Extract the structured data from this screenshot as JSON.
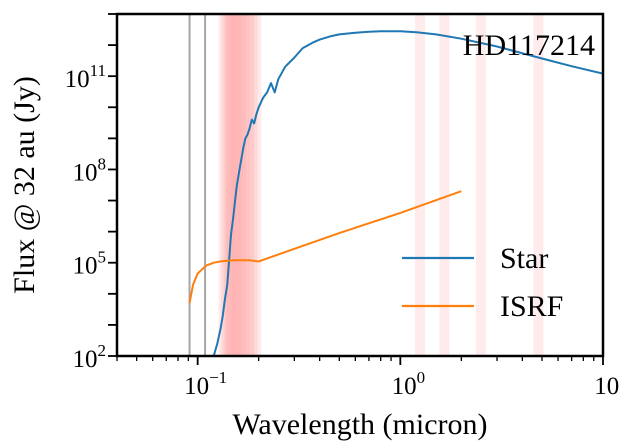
{
  "chart_data": {
    "type": "line",
    "title": "HD117214",
    "xlabel": "Wavelength (micron)",
    "ylabel": "Flux @ 32 au (Jy)",
    "xscale": "log",
    "yscale": "log",
    "xlim": [
      0.04,
      10
    ],
    "ylim": [
      100,
      10000000000000.0
    ],
    "x_ticks": [
      {
        "value": 0.1,
        "base": "10",
        "exp": "−1"
      },
      {
        "value": 1,
        "base": "10",
        "exp": "0"
      },
      {
        "value": 10,
        "base": "10",
        "exp": "1"
      }
    ],
    "y_ticks": [
      {
        "value": 100,
        "base": "10",
        "exp": "2"
      },
      {
        "value": 100000,
        "base": "10",
        "exp": "5"
      },
      {
        "value": 100000000,
        "base": "10",
        "exp": "8"
      },
      {
        "value": 100000000000,
        "base": "10",
        "exp": "11"
      }
    ],
    "grid": false,
    "legend_position": "bottom-right",
    "series": [
      {
        "name": "Star",
        "color": "#1f77b4",
        "x": [
          0.12,
          0.125,
          0.13,
          0.133,
          0.136,
          0.14,
          0.143,
          0.146,
          0.15,
          0.153,
          0.156,
          0.16,
          0.164,
          0.168,
          0.172,
          0.176,
          0.18,
          0.185,
          0.19,
          0.195,
          0.2,
          0.21,
          0.22,
          0.23,
          0.24,
          0.25,
          0.27,
          0.3,
          0.33,
          0.37,
          0.4,
          0.45,
          0.5,
          0.6,
          0.7,
          0.8,
          1.0,
          1.2,
          1.5,
          2.0,
          3.0,
          5.0,
          7.0,
          10.0
        ],
        "y": [
          100,
          250,
          800,
          2000,
          6000,
          20000,
          120000,
          800000,
          3000000,
          10000000.0,
          30000000.0,
          80000000.0,
          200000000.0,
          500000000.0,
          1000000000.0,
          1300000000.0,
          2000000000.0,
          4000000000.0,
          3000000000.0,
          6000000000.0,
          10000000000.0,
          20000000000.0,
          30000000000.0,
          60000000000.0,
          30000000000.0,
          80000000000.0,
          200000000000.0,
          400000000000.0,
          800000000000.0,
          1200000000000.0,
          1500000000000.0,
          1900000000000.0,
          2200000000000.0,
          2500000000000.0,
          2700000000000.0,
          2800000000000.0,
          2800000000000.0,
          2600000000000.0,
          2200000000000.0,
          1600000000000.0,
          900000000000.0,
          370000000000.0,
          210000000000.0,
          120000000000.0
        ]
      },
      {
        "name": "ISRF",
        "color": "#ff7f0e",
        "x": [
          0.0912,
          0.095,
          0.1,
          0.11,
          0.12,
          0.13,
          0.15,
          0.18,
          0.2,
          0.3,
          0.5,
          1.0,
          2.0
        ],
        "y": [
          5000,
          20000,
          45000,
          80000,
          100000,
          110000,
          120000,
          120000,
          110000,
          280000,
          900000,
          4000000,
          20000000
        ]
      }
    ],
    "vertical_lines": {
      "color": "#a6a6a6",
      "x": [
        0.0912,
        0.1088
      ]
    },
    "shaded_bands": {
      "color": "#ff8080",
      "x": [
        0.134,
        0.138,
        0.142,
        0.145,
        0.148,
        0.152,
        0.155,
        0.158,
        0.162,
        0.166,
        0.17,
        0.175,
        0.18,
        0.187,
        0.195,
        1.25,
        1.65,
        2.5,
        4.8
      ]
    }
  }
}
